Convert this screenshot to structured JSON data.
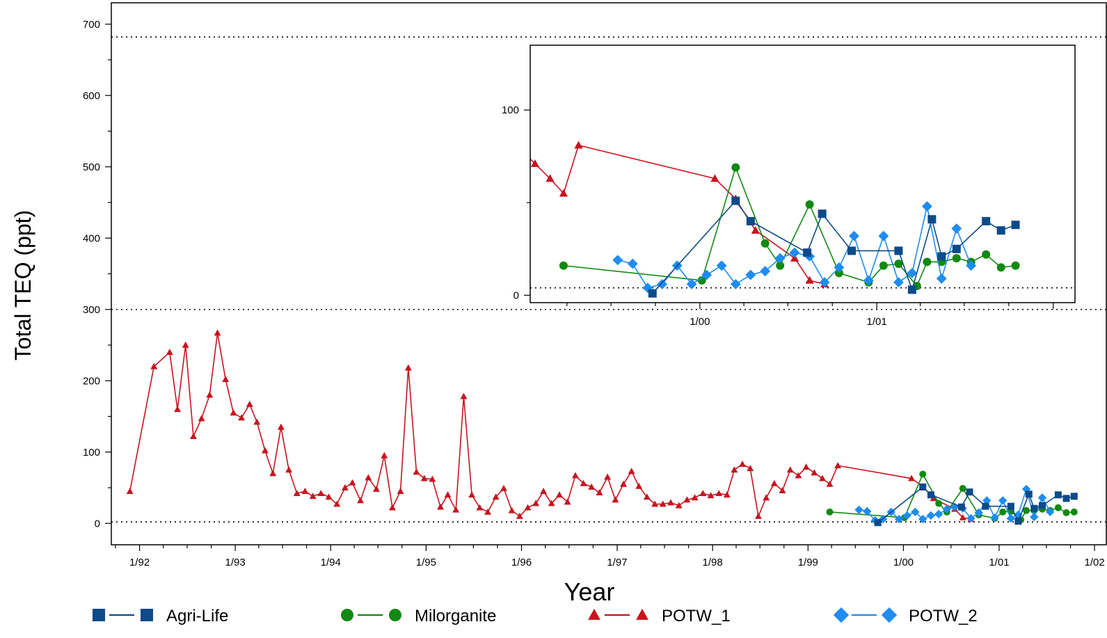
{
  "chart_data": {
    "type": "line",
    "main": {
      "xlabel": "Year",
      "ylabel": "Total TEQ (ppt)",
      "ylim": [
        -30,
        730
      ],
      "xlim": [
        "1991-09-15",
        "2002-02-15"
      ],
      "y_ticks": [
        0,
        100,
        200,
        300,
        400,
        500,
        600,
        700
      ],
      "x_ticks": [
        {
          "date": "1992-01-01",
          "label": "1/92"
        },
        {
          "date": "1993-01-01",
          "label": "1/93"
        },
        {
          "date": "1994-01-01",
          "label": "1/94"
        },
        {
          "date": "1995-01-01",
          "label": "1/95"
        },
        {
          "date": "1996-01-01",
          "label": "1/96"
        },
        {
          "date": "1997-01-01",
          "label": "1/97"
        },
        {
          "date": "1998-01-01",
          "label": "1/98"
        },
        {
          "date": "1999-01-01",
          "label": "1/99"
        },
        {
          "date": "2000-01-01",
          "label": "1/00"
        },
        {
          "date": "2001-01-01",
          "label": "1/01"
        },
        {
          "date": "2002-01-01",
          "label": "1/02"
        }
      ],
      "reference_lines": [
        2,
        300,
        682
      ],
      "grid": false
    },
    "inset": {
      "xlim": [
        "1999-01-15",
        "2002-02-15"
      ],
      "ylim": [
        -4,
        135
      ],
      "y_ticks": [
        0,
        100
      ],
      "x_ticks": [
        {
          "date": "2000-01-01",
          "label": "1/00"
        },
        {
          "date": "2001-01-01",
          "label": "1/01"
        }
      ],
      "reference_lines": [
        4
      ]
    },
    "legend_position": "bottom",
    "series": [
      {
        "name": "Agri-Life",
        "color": "#0d4a8a",
        "marker": "square",
        "x": [
          "1999-09-25",
          "2000-03-15",
          "2000-04-15",
          "2000-08-10",
          "2000-09-10",
          "2000-11-10",
          "2001-02-15",
          "2001-03-15",
          "2001-04-25",
          "2001-05-15",
          "2001-06-15",
          "2001-08-15",
          "2001-09-15",
          "2001-10-15"
        ],
        "y": [
          1,
          51,
          40,
          23,
          44,
          24,
          24,
          3,
          41,
          21,
          25,
          40,
          35,
          38
        ]
      },
      {
        "name": "Milorganite",
        "color": "#118a11",
        "marker": "circle",
        "x": [
          "1999-03-25",
          "2000-01-05",
          "2000-03-15",
          "2000-05-15",
          "2000-06-15",
          "2000-08-15",
          "2000-10-15",
          "2000-12-15",
          "2001-01-15",
          "2001-02-15",
          "2001-03-25",
          "2001-04-15",
          "2001-05-15",
          "2001-06-15",
          "2001-07-15",
          "2001-08-15",
          "2001-09-15",
          "2001-10-15"
        ],
        "y": [
          16,
          8,
          69,
          28,
          16,
          49,
          12,
          7,
          16,
          17,
          5,
          18,
          18,
          20,
          18,
          22,
          15,
          16
        ]
      },
      {
        "name": "POTW_1",
        "color": "#c8141e",
        "marker": "triangle",
        "x": [
          "1991-11-25",
          "1992-02-25",
          "1992-04-25",
          "1992-05-25",
          "1992-06-25",
          "1992-07-25",
          "1992-08-25",
          "1992-09-25",
          "1992-10-25",
          "1992-11-25",
          "1992-12-25",
          "1993-01-25",
          "1993-02-25",
          "1993-03-25",
          "1993-04-25",
          "1993-05-25",
          "1993-06-25",
          "1993-07-25",
          "1993-08-25",
          "1993-09-25",
          "1993-10-25",
          "1993-11-25",
          "1993-12-25",
          "1994-01-25",
          "1994-02-25",
          "1994-03-25",
          "1994-04-25",
          "1994-05-25",
          "1994-06-25",
          "1994-07-25",
          "1994-08-25",
          "1994-09-25",
          "1994-10-25",
          "1994-11-25",
          "1994-12-25",
          "1995-01-25",
          "1995-02-25",
          "1995-03-25",
          "1995-04-25",
          "1995-05-25",
          "1995-06-25",
          "1995-07-25",
          "1995-08-25",
          "1995-09-25",
          "1995-10-25",
          "1995-11-25",
          "1995-12-25",
          "1996-01-25",
          "1996-02-25",
          "1996-03-25",
          "1996-04-25",
          "1996-05-25",
          "1996-06-25",
          "1996-07-25",
          "1996-08-25",
          "1996-09-25",
          "1996-10-25",
          "1996-11-25",
          "1996-12-25",
          "1997-01-25",
          "1997-02-25",
          "1997-03-25",
          "1997-04-25",
          "1997-05-25",
          "1997-06-25",
          "1997-07-25",
          "1997-08-25",
          "1997-09-25",
          "1997-10-25",
          "1997-11-25",
          "1997-12-25",
          "1998-01-25",
          "1998-02-25",
          "1998-03-25",
          "1998-04-25",
          "1998-05-25",
          "1998-06-25",
          "1998-07-25",
          "1998-08-25",
          "1998-09-25",
          "1998-10-25",
          "1998-11-25",
          "1998-12-25",
          "1999-01-25",
          "1999-02-25",
          "1999-03-25",
          "1999-04-25",
          "2000-02-01",
          "2000-03-15",
          "2000-04-25",
          "2000-07-15",
          "2000-08-15",
          "2000-09-15"
        ],
        "y": [
          45,
          220,
          240,
          160,
          250,
          122,
          147,
          180,
          267,
          202,
          155,
          148,
          167,
          142,
          102,
          70,
          135,
          75,
          42,
          45,
          38,
          42,
          37,
          27,
          50,
          57,
          32,
          64,
          48,
          95,
          22,
          45,
          218,
          72,
          63,
          62,
          23,
          40,
          19,
          178,
          40,
          22,
          16,
          37,
          49,
          18,
          10,
          22,
          28,
          45,
          28,
          40,
          30,
          67,
          56,
          51,
          43,
          65,
          33,
          55,
          73,
          52,
          37,
          27,
          27,
          29,
          25,
          33,
          36,
          42,
          39,
          42,
          40,
          75,
          83,
          77,
          10,
          36,
          56,
          46,
          75,
          67,
          79,
          71,
          63,
          55,
          81,
          63,
          52,
          35,
          20,
          8,
          6
        ]
      },
      {
        "name": "POTW_2",
        "color": "#1e8cf0",
        "marker": "diamond",
        "x": [
          "1999-07-15",
          "1999-08-15",
          "1999-09-15",
          "1999-10-15",
          "1999-11-15",
          "1999-12-15",
          "2000-01-15",
          "2000-02-15",
          "2000-03-15",
          "2000-04-15",
          "2000-05-15",
          "2000-06-15",
          "2000-07-15",
          "2000-08-15",
          "2000-09-15",
          "2000-10-15",
          "2000-11-15",
          "2000-12-15",
          "2001-01-15",
          "2001-02-15",
          "2001-03-15",
          "2001-04-15",
          "2001-05-15",
          "2001-06-15",
          "2001-07-15"
        ],
        "y": [
          19,
          17,
          4,
          6,
          16,
          6,
          11,
          16,
          6,
          11,
          13,
          20,
          23,
          21,
          7,
          15,
          32,
          8,
          32,
          7,
          12,
          48,
          9,
          36,
          16
        ]
      }
    ]
  }
}
